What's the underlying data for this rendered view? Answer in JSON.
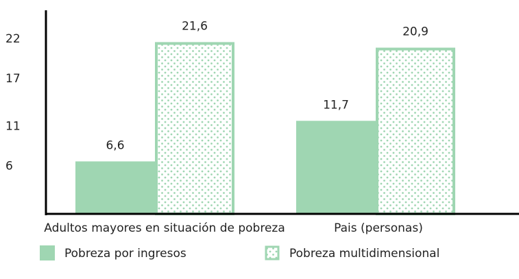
{
  "chart_data": {
    "type": "bar",
    "categories": [
      "Adultos mayores en situación de pobreza",
      "Pais (personas)"
    ],
    "series": [
      {
        "name": "Pobreza por ingresos",
        "color": "#9fd6b2",
        "values": [
          6.6,
          11.7
        ],
        "value_labels": [
          "6,6",
          "11,7"
        ]
      },
      {
        "name": "Pobreza multidimensional",
        "color": "#9fd6b2",
        "pattern": "dots",
        "values": [
          21.6,
          20.9
        ],
        "value_labels": [
          "21,6",
          "20,9"
        ]
      }
    ],
    "ylim": [
      0,
      25.6
    ],
    "yticks": [
      6,
      11,
      17,
      22
    ],
    "grid": false
  }
}
